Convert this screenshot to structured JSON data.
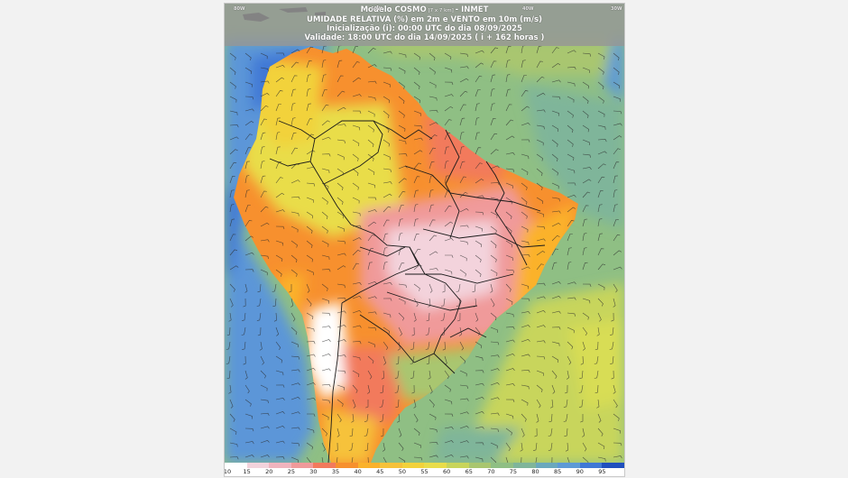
{
  "map": {
    "title_lines": [
      {
        "main": "Modelo COSMO",
        "small": " [7 x 7 km] ",
        "tail": "- INMET"
      },
      {
        "main": "UMIDADE RELATIVA (%) em 2m e VENTO em 10m (m/s)"
      },
      {
        "main": "Inicialização (i): 00:00 UTC do dia 08/09/2025"
      },
      {
        "main": "Validade: 18:00 UTC do dia 14/09/2025 ( i + 162 horas )"
      }
    ],
    "lon_ticks": [
      "80W",
      "60W",
      "40W",
      "30W"
    ],
    "colorbar": {
      "labels": [
        "10",
        "15",
        "20",
        "25",
        "30",
        "35",
        "40",
        "45",
        "50",
        "55",
        "60",
        "65",
        "70",
        "75",
        "80",
        "85",
        "90",
        "95"
      ],
      "colors": [
        "#ffffff",
        "#f3d3dc",
        "#f0b4be",
        "#f09a9a",
        "#f27a5c",
        "#f7902e",
        "#fbb22c",
        "#f6c23a",
        "#f2d23b",
        "#e9dd4a",
        "#c8d55b",
        "#a9c66f",
        "#8fbf84",
        "#7fb59a",
        "#6aa8bd",
        "#5d9ad6",
        "#3f78d6",
        "#1f4fbe"
      ]
    },
    "colors": {
      "ocean_humid": "#5b96d8",
      "ocean_moderate": "#8fbf84",
      "land_dry": "#f09a9a",
      "land_very_dry": "#f3d3dc",
      "land_orange": "#f7902e",
      "land_yellow": "#e9dd4a",
      "borders": "#1a1a1a"
    }
  }
}
